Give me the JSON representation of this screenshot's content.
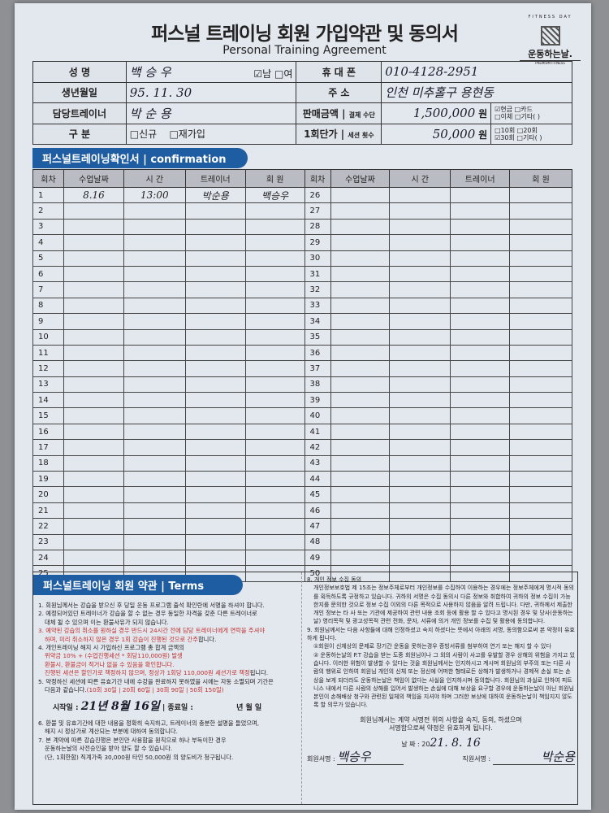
{
  "header": {
    "title": "퍼스널 트레이닝 회원 가입약관 및 동의서",
    "subtitle": "Personal Training Agreement",
    "logo": {
      "ring": "FITNESS DAY",
      "name": "운동하는날.",
      "tag": "PREMIUM FITNESS"
    }
  },
  "info": {
    "name_label": "성 명",
    "name_value": "백 승 우",
    "gender_male": "☑남",
    "gender_female": "□여",
    "phone_label": "휴 대 폰",
    "phone_value": "010-4128-2951",
    "birth_label": "생년월일",
    "birth_value": "95. 11. 30",
    "address_label": "주 소",
    "address_value": "인천 미추홀구 용현동",
    "trainer_label": "담당트레이너",
    "trainer_value": "박 순 용",
    "price_label": "판매금액",
    "pay_method_label": "결제 수단",
    "price_value": "1,500,000",
    "won": "원",
    "pay_options": [
      "☑현금 □카드",
      "□이체 □기타(        )"
    ],
    "type_label": "구 분",
    "type_options": [
      "□신규",
      "□재가입"
    ],
    "unit_label": "1회단가",
    "sessions_label": "세션 횟수",
    "unit_value": "50,000",
    "session_options": [
      "□10회 □20회",
      "☑30회 □기타(        )"
    ]
  },
  "confirmation": {
    "banner": "퍼스널트레이닝확인서  | confirmation",
    "columns": [
      "회차",
      "수업날짜",
      "시 간",
      "트레이너",
      "회 원",
      "회차",
      "수업날짜",
      "시 간",
      "트레이너",
      "회 원"
    ],
    "entries": [
      {
        "n": 1,
        "date": "8.16",
        "time": "13:00",
        "trainer": "박순용",
        "member": "백승우"
      }
    ]
  },
  "terms": {
    "banner": "퍼스널트레이닝 회원 약관  | Terms",
    "t1": "1. 회원님께서는 강습을 받으신 후 당일 운동 프로그램 출석 확인란에 서명을 하셔야 합니다.",
    "t2a": "2. 예정되어있던 트레이너가 강습을 할 수 없는 경우 동일한 자격을 갖춘 다른 트레이너로",
    "t2b": "대체 될 수 있으며 이는 환불사유가 되지 않습니다.",
    "t3a": "3. 예약된 강습의 취소를 원하실 경우 반드시 24시간 전에 담당 트레이너에게 연락을 주셔야",
    "t3b": "하며, 미리 취소하지 않은 경우 1회 강습이 진행된 것으로 간주",
    "t3c": "합니다.",
    "t4a": "4. 개인트레이닝 해지 시 가입하신 프로그램 총 합계 금액의",
    "t4b": "위약금 10% + (수업진행세션 * 회당110,000원) 발생",
    "t4c": "환불시, 환불금이 적거나 없을 수 있음을 확인합니다.",
    "t4d": "진행된 세션은 할인가로 책정하지 않으며, 정상가 1회당 110,000원 세션가로 책정",
    "t4e": "됩니다.",
    "t5a": "5. 약정하신 세션에 따른 유효기간 내에 수강을 완료하지 못하였을 시에는 자동 소멸되며 기간은",
    "t5b": "다음과 같습니다.",
    "t5c": "(10회 30일 | 20회 60일 | 30회 90일 | 50회 150일)",
    "start_label": "시작일 :",
    "start_value": "21년 8월 16일",
    "end_label": "| 종료일 :",
    "end_value": "년    월    일",
    "t6a": "6. 환불 및 유효기간에 대한 내용을 정확히 숙지하고, 트레이너의 충분한 설명을 들었으며,",
    "t6b": "해지 시 정상가로 계산되는 부분에 대하여 동의합니다.",
    "t7a": "7. 본 계약에 따른 강습진행은 본인만 사용함을 원칙으로 하나 부득이한 경우",
    "t7b": "운동하는날의 사전승인을 받아 양도 할 수 있습니다.",
    "t7c": "(단, 1회한함) 직계가족 30,000원 타인 50,000원 의 양도비가 청구됩니다."
  },
  "privacy": {
    "p8": "8. 개인 정보 수집 동의",
    "p8body": "개인정보보호법 제 15조는 정보주체로부터 개인정보를 수집하여 이용하는 경우에는 정보주체에게 명시적 동의를 획득하도록 규정하고 있습니다. 귀하의 서명은 수집 동의시 다른 정보와 취합하여 귀하의 정보 수집이 가능한지를 문의한 것으로 정보 수집 이외의 다른 목적으로 사용하지 않음을 알려 드립니다. 다만, 귀하께서 제출한 개인 정보는 타 사 또는 기관에 제공하여 관련 내용 조회 등에 활용 할 수 있다고 명시된 경우 및 당사(운동하는날) 영리목적 및 광고성목적 관련 전화, 문자, 서류에 의거 개인 정보를 수집 및 활용에 동의합니다.",
    "p9": "9. 회원님께서는 다음 사항들에 대해 인정하셨고 숙지 하셨다는 뜻에서 아래의 서명, 동의함으로써 본 약정이 유효하게 됩니다.",
    "p9a": "①회원이 신체상의 문제로 장기간 운동을 못하는경우 증빙서류를 첨부하여 연기 또는 해지 할 수 있다",
    "p9b": "② 운동하는날의 P.T 강습을 받는 도중 회원님이나 그 외의 사람이 사고를 유발할 경우 상해의 위험을 가지고 있습니다. 이러한 위험이 발생할 수 있다는 것을 회원님께서는 인지하시고 계시며 회원님의 부주의 또는 다른 사람의 행위로 인하여 회원님 개인의 신체 또는 정신에 어떠한 형태로든 상해가 발생하거나 경제적 손실 또는 손상을 보게 되더라도 운동하는날은 책임이 없다는 사실을 인지하시며 동의합니다. 회원님의 과실로 인하여 피트니스 내에서 다른 사람의 상해를 입어서 발생하는 손실에 대해 보상을 요구할 경우에 운동하는날이 아닌 회원님 본인이 손해배상 청구와 관련된 일체의 책임을 지셔야 하며 그러한 보상에 대하여 운동하는날이 책임지지 않도록 할 의무가 있습니다.",
    "closing1": "회원님께서는 계약 서명전 위의 사항을 숙지, 동의, 하셨으며",
    "closing2": "서명함으로써 약정은 유효하게 됩니다.",
    "date_label": "날    짜 : 20",
    "date_value": "21.  8. 16",
    "member_sign_label": "회원서명 :",
    "member_sign": "백승우",
    "staff_sign_label": "직원서명 :",
    "staff_sign": "박순용"
  }
}
